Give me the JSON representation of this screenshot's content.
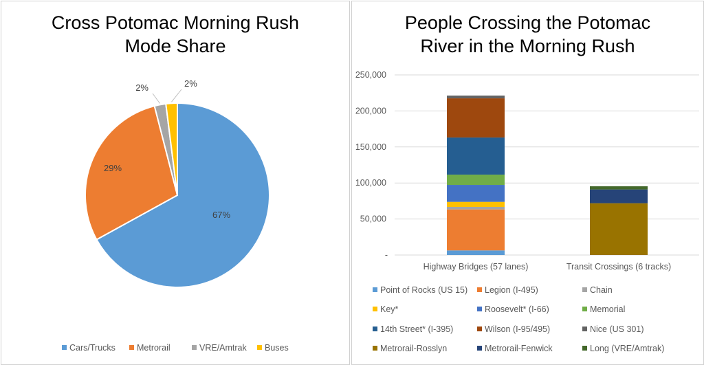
{
  "chart_data": [
    {
      "type": "pie",
      "title": "Cross Potomac Morning Rush Mode Share",
      "title_lines": [
        "Cross Potomac Morning Rush",
        "Mode Share"
      ],
      "categories": [
        "Cars/Trucks",
        "Metrorail",
        "VRE/Amtrak",
        "Buses"
      ],
      "values": [
        67,
        29,
        2,
        2
      ],
      "data_labels": [
        "67%",
        "29%",
        "2%",
        "2%"
      ],
      "colors": [
        "#5B9BD5",
        "#ED7D31",
        "#A5A5A5",
        "#FFC000"
      ],
      "legend": "bottom"
    },
    {
      "type": "bar",
      "stacked": true,
      "title": "People Crossing the Potomac River in the Morning Rush",
      "title_lines": [
        "People Crossing the Potomac",
        "River in the Morning Rush"
      ],
      "categories": [
        "Highway Bridges (57 lanes)",
        "Transit Crossings (6 tracks)"
      ],
      "ylim": [
        0,
        250000
      ],
      "yticks": [
        "-",
        "50,000",
        "100,000",
        "150,000",
        "200,000",
        "250,000"
      ],
      "grid": true,
      "legend": "bottom",
      "series": [
        {
          "name": "Point of Rocks (US 15)",
          "color": "#5B9BD5",
          "values": [
            6400,
            0
          ]
        },
        {
          "name": "Legion (I-495)",
          "color": "#ED7D31",
          "values": [
            56900,
            0
          ]
        },
        {
          "name": "Chain",
          "color": "#A5A5A5",
          "values": [
            3500,
            0
          ]
        },
        {
          "name": "Key*",
          "color": "#FFC000",
          "values": [
            7000,
            0
          ]
        },
        {
          "name": "Roosevelt* (I-66)",
          "color": "#4472C4",
          "values": [
            23500,
            0
          ]
        },
        {
          "name": "Memorial",
          "color": "#70AD47",
          "values": [
            14300,
            0
          ]
        },
        {
          "name": "14th Street* (I-395)",
          "color": "#255E91",
          "values": [
            51500,
            0
          ]
        },
        {
          "name": "Wilson (I-95/495)",
          "color": "#9E480E",
          "values": [
            54400,
            0
          ]
        },
        {
          "name": "Nice (US 301)",
          "color": "#636363",
          "values": [
            3800,
            0
          ]
        },
        {
          "name": "Metrorail-Rosslyn",
          "color": "#997300",
          "values": [
            0,
            71900
          ]
        },
        {
          "name": "Metrorail-Fenwick",
          "color": "#264478",
          "values": [
            0,
            19100
          ]
        },
        {
          "name": "Long (VRE/Amtrak)",
          "color": "#43682B",
          "values": [
            0,
            4400
          ]
        }
      ]
    }
  ]
}
